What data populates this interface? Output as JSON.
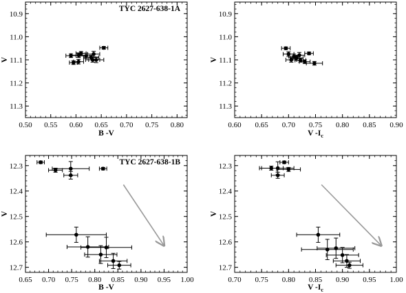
{
  "chart_data": [
    {
      "type": "scatter",
      "title": "TYC 2627-638-1A",
      "xlabel": "B -V",
      "ylabel": "V",
      "xlim": [
        0.5,
        0.82
      ],
      "ylim": [
        11.35,
        10.85
      ],
      "y_inverted": true,
      "xticks": [
        "0.50",
        "0.55",
        "0.60",
        "0.65",
        "0.70",
        "0.75",
        "0.80"
      ],
      "yticks": [
        "10.9",
        "11.0",
        "11.1",
        "11.2",
        "11.3"
      ],
      "series": [
        {
          "points": [
            {
              "x": 0.655,
              "y": 11.048,
              "xerr": 0.008,
              "yerr": 0.006
            },
            {
              "x": 0.61,
              "y": 11.072,
              "xerr": 0.01,
              "yerr": 0.008
            },
            {
              "x": 0.635,
              "y": 11.075,
              "xerr": 0.012,
              "yerr": 0.012
            },
            {
              "x": 0.59,
              "y": 11.082,
              "xerr": 0.01,
              "yerr": 0.008
            },
            {
              "x": 0.605,
              "y": 11.08,
              "xerr": 0.015,
              "yerr": 0.01
            },
            {
              "x": 0.62,
              "y": 11.083,
              "xerr": 0.012,
              "yerr": 0.012
            },
            {
              "x": 0.63,
              "y": 11.09,
              "xerr": 0.015,
              "yerr": 0.01
            },
            {
              "x": 0.633,
              "y": 11.1,
              "xerr": 0.014,
              "yerr": 0.01
            },
            {
              "x": 0.64,
              "y": 11.1,
              "xerr": 0.015,
              "yerr": 0.012
            },
            {
              "x": 0.605,
              "y": 11.108,
              "xerr": 0.01,
              "yerr": 0.01
            },
            {
              "x": 0.595,
              "y": 11.112,
              "xerr": 0.008,
              "yerr": 0.008
            }
          ]
        }
      ],
      "arrow": null
    },
    {
      "type": "scatter",
      "title": "",
      "xlabel": "V -I",
      "xlabel_sub": "c",
      "ylabel": "V",
      "xlim": [
        0.6,
        0.9
      ],
      "ylim": [
        11.35,
        10.85
      ],
      "y_inverted": true,
      "xticks": [
        "0.60",
        "0.65",
        "0.70",
        "0.75",
        "0.80",
        "0.85",
        "0.90"
      ],
      "yticks": [
        "10.9",
        "11.0",
        "11.1",
        "11.2",
        "11.3"
      ],
      "series": [
        {
          "points": [
            {
              "x": 0.695,
              "y": 11.05,
              "xerr": 0.008,
              "yerr": 0.006
            },
            {
              "x": 0.738,
              "y": 11.072,
              "xerr": 0.008,
              "yerr": 0.006
            },
            {
              "x": 0.7,
              "y": 11.075,
              "xerr": 0.01,
              "yerr": 0.01
            },
            {
              "x": 0.72,
              "y": 11.08,
              "xerr": 0.01,
              "yerr": 0.012
            },
            {
              "x": 0.71,
              "y": 11.085,
              "xerr": 0.01,
              "yerr": 0.01
            },
            {
              "x": 0.715,
              "y": 11.092,
              "xerr": 0.012,
              "yerr": 0.01
            },
            {
              "x": 0.705,
              "y": 11.1,
              "xerr": 0.01,
              "yerr": 0.01
            },
            {
              "x": 0.722,
              "y": 11.102,
              "xerr": 0.01,
              "yerr": 0.008
            },
            {
              "x": 0.73,
              "y": 11.108,
              "xerr": 0.01,
              "yerr": 0.008
            },
            {
              "x": 0.748,
              "y": 11.115,
              "xerr": 0.015,
              "yerr": 0.008
            }
          ]
        }
      ],
      "arrow": null
    },
    {
      "type": "scatter",
      "title": "TYC 2627-638-1B",
      "xlabel": "B -V",
      "ylabel": "V",
      "xlim": [
        0.65,
        1.0
      ],
      "ylim": [
        12.72,
        12.26
      ],
      "y_inverted": true,
      "xticks": [
        "0.65",
        "0.70",
        "0.75",
        "0.80",
        "0.85",
        "0.90",
        "0.95",
        "1.00"
      ],
      "yticks": [
        "12.3",
        "12.4",
        "12.5",
        "12.6",
        "12.7"
      ],
      "series": [
        {
          "points": [
            {
              "x": 0.683,
              "y": 12.287,
              "xerr": 0.008,
              "yerr": 0.005
            },
            {
              "x": 0.818,
              "y": 12.312,
              "xerr": 0.008,
              "yerr": 0.005
            },
            {
              "x": 0.715,
              "y": 12.318,
              "xerr": 0.015,
              "yerr": 0.008
            },
            {
              "x": 0.748,
              "y": 12.312,
              "xerr": 0.04,
              "yerr": 0.028
            },
            {
              "x": 0.748,
              "y": 12.338,
              "xerr": 0.015,
              "yerr": 0.015
            },
            {
              "x": 0.76,
              "y": 12.572,
              "xerr": 0.065,
              "yerr": 0.03
            },
            {
              "x": 0.785,
              "y": 12.62,
              "xerr": 0.045,
              "yerr": 0.04
            },
            {
              "x": 0.825,
              "y": 12.622,
              "xerr": 0.055,
              "yerr": 0.04
            },
            {
              "x": 0.813,
              "y": 12.65,
              "xerr": 0.035,
              "yerr": 0.035
            },
            {
              "x": 0.84,
              "y": 12.675,
              "xerr": 0.03,
              "yerr": 0.03
            },
            {
              "x": 0.853,
              "y": 12.692,
              "xerr": 0.025,
              "yerr": 0.015
            }
          ]
        }
      ],
      "arrow": {
        "x1": 0.862,
        "y1": 12.375,
        "x2": 0.95,
        "y2": 12.615
      }
    },
    {
      "type": "scatter",
      "title": "",
      "xlabel": "V -I",
      "xlabel_sub": "c",
      "ylabel": "V",
      "xlim": [
        0.7,
        1.0
      ],
      "ylim": [
        12.72,
        12.26
      ],
      "y_inverted": true,
      "xticks": [
        "0.70",
        "0.75",
        "0.80",
        "0.85",
        "0.90",
        "0.95",
        "1.00"
      ],
      "yticks": [
        "12.3",
        "12.4",
        "12.5",
        "12.6",
        "12.7"
      ],
      "series": [
        {
          "points": [
            {
              "x": 0.792,
              "y": 12.287,
              "xerr": 0.008,
              "yerr": 0.005
            },
            {
              "x": 0.768,
              "y": 12.31,
              "xerr": 0.022,
              "yerr": 0.008
            },
            {
              "x": 0.8,
              "y": 12.315,
              "xerr": 0.022,
              "yerr": 0.008
            },
            {
              "x": 0.78,
              "y": 12.31,
              "xerr": 0.03,
              "yerr": 0.025
            },
            {
              "x": 0.78,
              "y": 12.338,
              "xerr": 0.012,
              "yerr": 0.012
            },
            {
              "x": 0.855,
              "y": 12.572,
              "xerr": 0.04,
              "yerr": 0.03
            },
            {
              "x": 0.872,
              "y": 12.63,
              "xerr": 0.048,
              "yerr": 0.04
            },
            {
              "x": 0.888,
              "y": 12.625,
              "xerr": 0.035,
              "yerr": 0.04
            },
            {
              "x": 0.9,
              "y": 12.652,
              "xerr": 0.03,
              "yerr": 0.03
            },
            {
              "x": 0.908,
              "y": 12.675,
              "xerr": 0.025,
              "yerr": 0.025
            },
            {
              "x": 0.913,
              "y": 12.692,
              "xerr": 0.025,
              "yerr": 0.012
            }
          ]
        }
      ],
      "arrow": {
        "x1": 0.861,
        "y1": 12.375,
        "x2": 0.972,
        "y2": 12.615
      }
    }
  ],
  "colors": {
    "points": "#000000",
    "arrow": "#999999",
    "axes": "#000000"
  }
}
